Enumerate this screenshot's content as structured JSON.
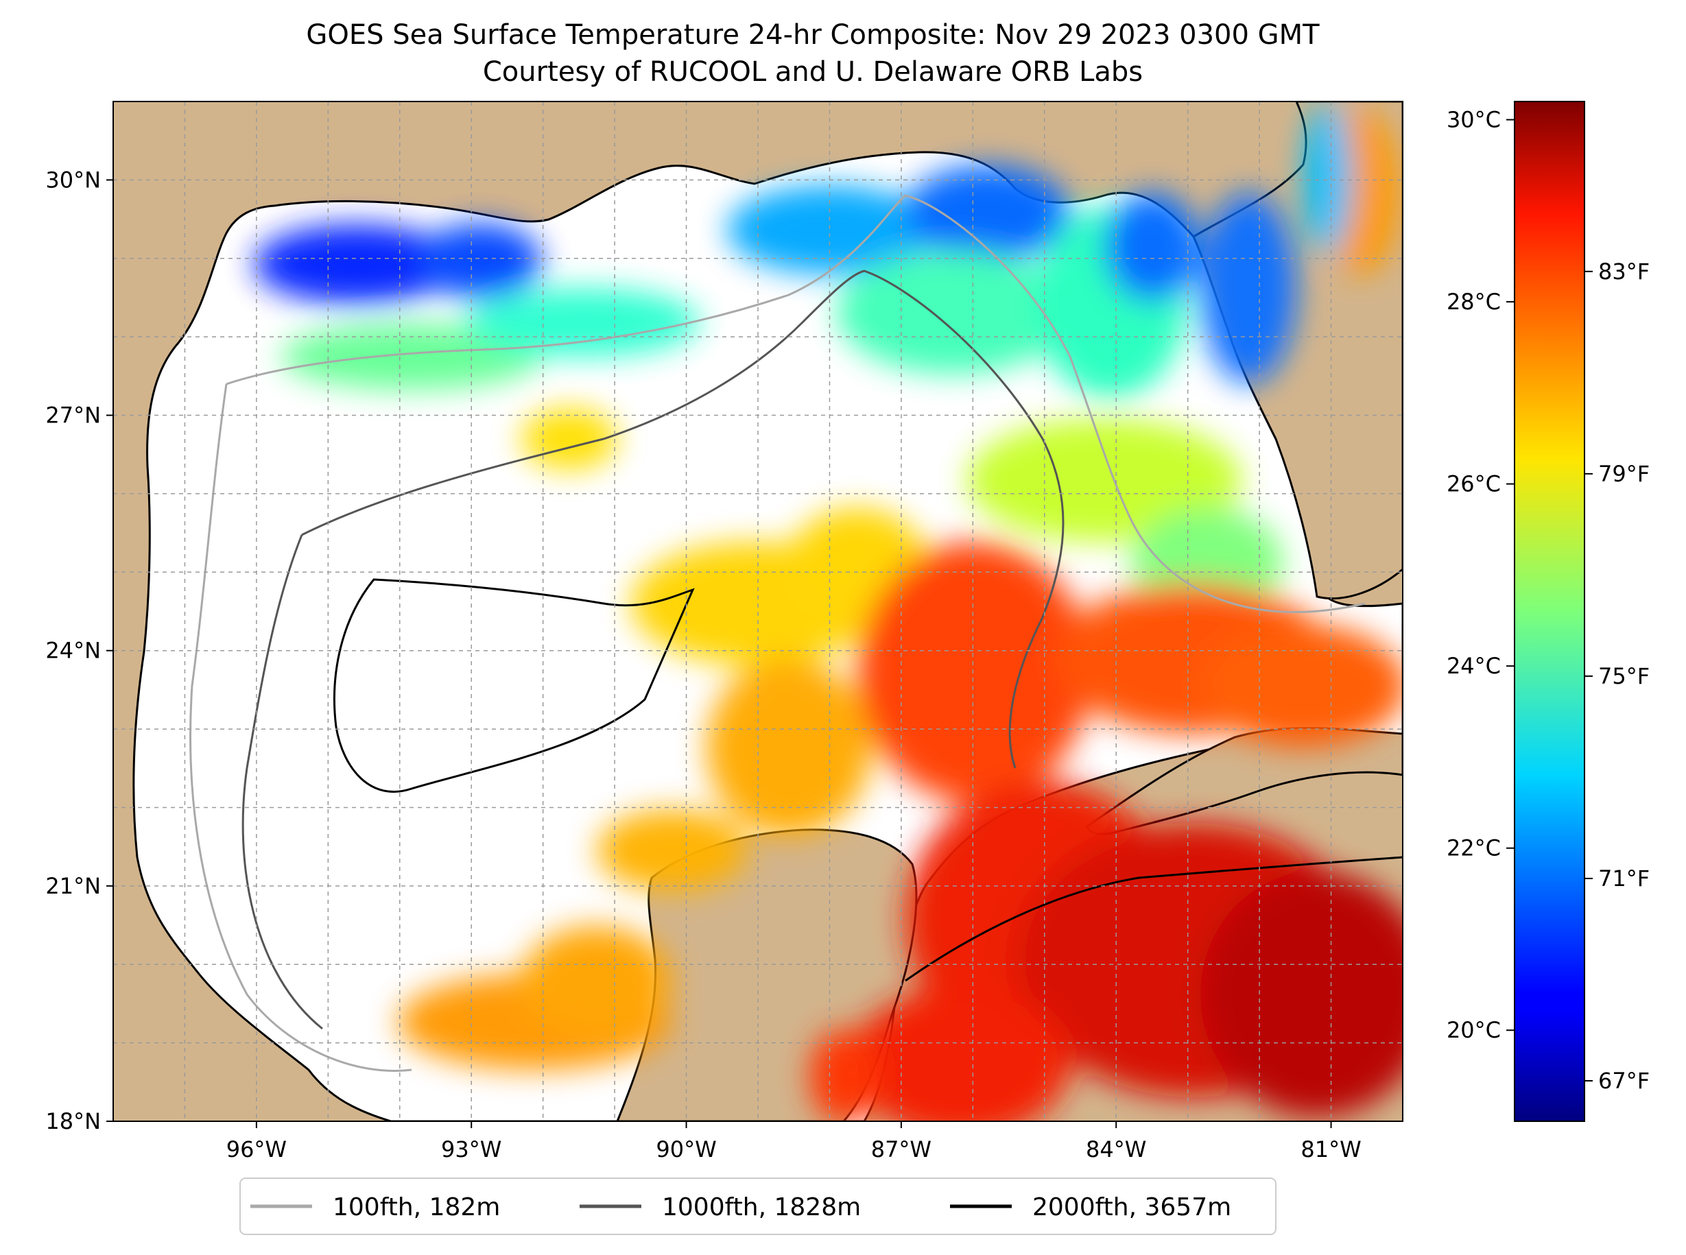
{
  "title": {
    "line1": "GOES Sea Surface Temperature 24-hr Composite: Nov 29 2023 0300 GMT",
    "line2": "Courtesy of RUCOOL and U. Delaware ORB Labs"
  },
  "map": {
    "lon_range": [
      -98,
      -80
    ],
    "lat_range": [
      18,
      31
    ],
    "x_ticks": [
      {
        "value": -96,
        "label": "96°W"
      },
      {
        "value": -93,
        "label": "93°W"
      },
      {
        "value": -90,
        "label": "90°W"
      },
      {
        "value": -87,
        "label": "87°W"
      },
      {
        "value": -84,
        "label": "84°W"
      },
      {
        "value": -81,
        "label": "81°W"
      }
    ],
    "y_ticks": [
      {
        "value": 30,
        "label": "30°N"
      },
      {
        "value": 27,
        "label": "27°N"
      },
      {
        "value": 24,
        "label": "24°N"
      },
      {
        "value": 21,
        "label": "21°N"
      },
      {
        "value": 18,
        "label": "18°N"
      }
    ],
    "grid": true,
    "colors": {
      "land": "#d2b48c",
      "no_data": "#ffffff",
      "lakes": "#99b3e0",
      "coastline": "#000000",
      "gridline": "#9a9a9a"
    }
  },
  "colorbar": {
    "colormap": "jet",
    "celsius_range": [
      19.0,
      30.2
    ],
    "celsius_ticks": [
      {
        "value": 20,
        "label": "20°C"
      },
      {
        "value": 22,
        "label": "22°C"
      },
      {
        "value": 24,
        "label": "24°C"
      },
      {
        "value": 26,
        "label": "26°C"
      },
      {
        "value": 28,
        "label": "28°C"
      },
      {
        "value": 30,
        "label": "30°C"
      }
    ],
    "fahrenheit_ticks": [
      {
        "value": 67,
        "label": "67°F"
      },
      {
        "value": 71,
        "label": "71°F"
      },
      {
        "value": 75,
        "label": "75°F"
      },
      {
        "value": 79,
        "label": "79°F"
      },
      {
        "value": 83,
        "label": "83°F"
      }
    ]
  },
  "legend": {
    "placement": "bottom",
    "items": [
      {
        "label": "100fth, 182m",
        "color": "#a9a9a9"
      },
      {
        "label": "1000fth, 1828m",
        "color": "#555555"
      },
      {
        "label": "2000fth, 3657m",
        "color": "#000000"
      }
    ]
  }
}
